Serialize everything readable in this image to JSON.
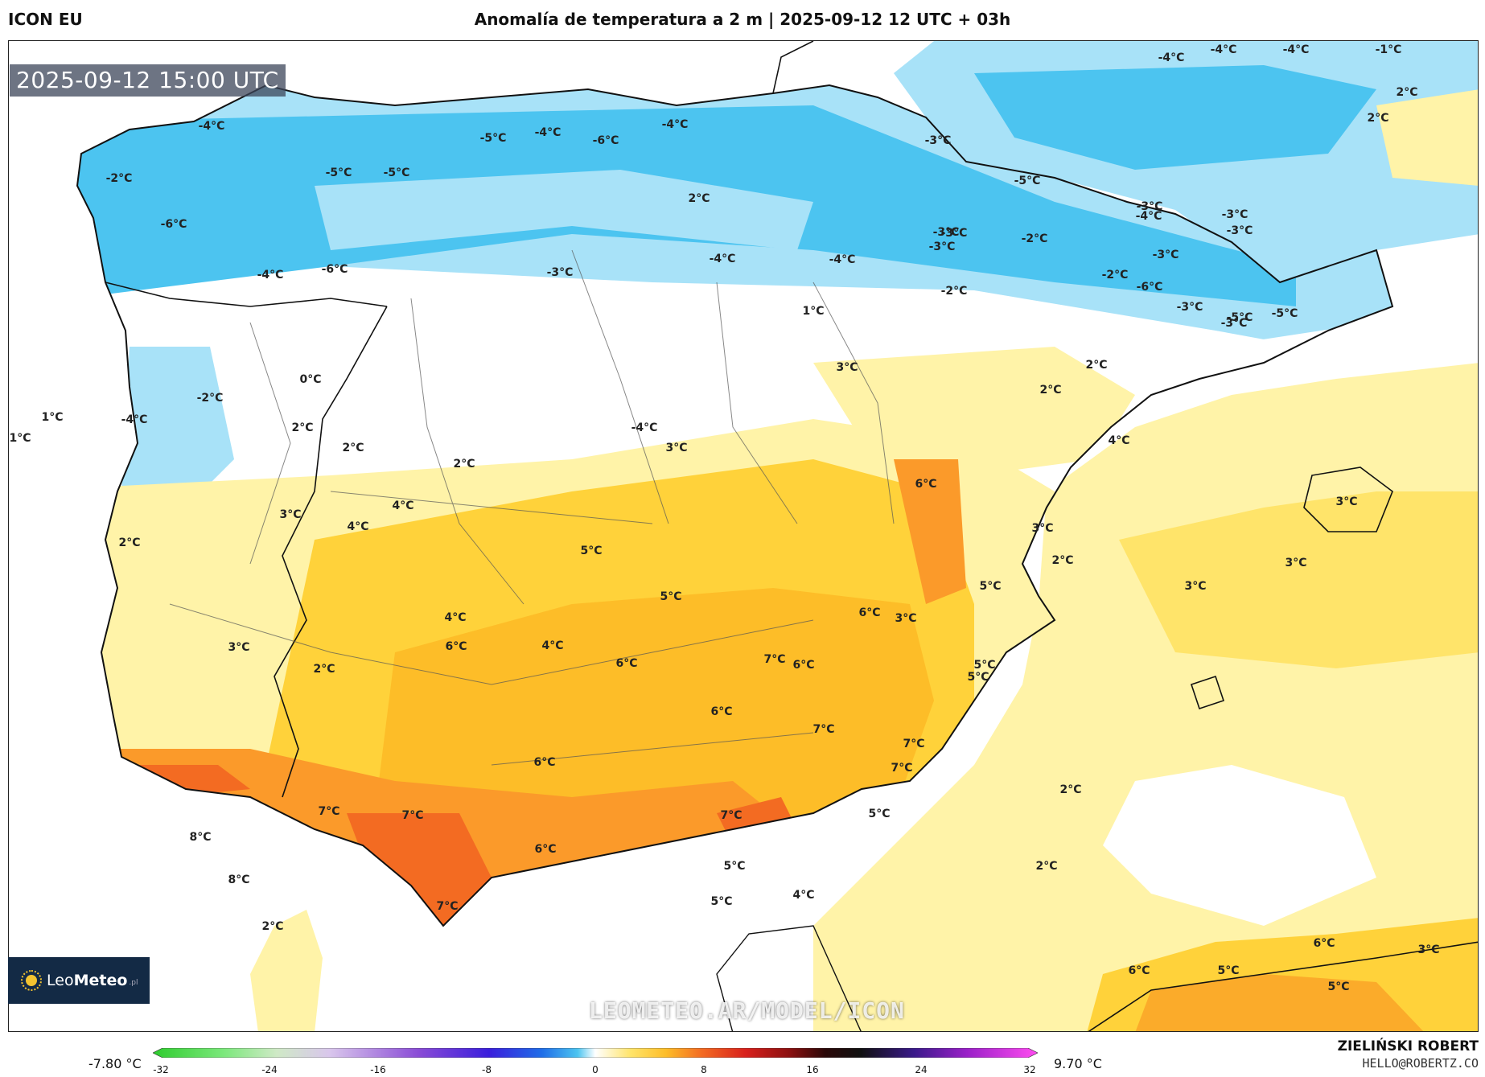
{
  "header": {
    "model": "ICON EU",
    "title": "Anomalía de temperatura a 2 m | 2025-09-12 12 UTC + 03h"
  },
  "map": {
    "valid_time": "2025-09-12 15:00 UTC",
    "watermark": "LEOMETEO.AR/MODEL/ICON",
    "labels": [
      "-4°C",
      "-4°C",
      "-4°C",
      "-1°C",
      "2°C",
      "2°C",
      "-4°C",
      "-5°C",
      "-4°C",
      "-6°C",
      "-4°C",
      "-3°C",
      "-5°C",
      "-3°C",
      "-3°C",
      "-2°C",
      "-5°C",
      "-5°C",
      "2°C",
      "-6°C",
      "-4°C",
      "-3°C",
      "-3°C",
      "-6°C",
      "-3°C",
      "-2°C",
      "-4°C",
      "-5°C",
      "-6°C",
      "-4°C",
      "-3°C",
      "-4°C",
      "-3°C",
      "-2°C",
      "-3°C",
      "-2°C",
      "-3°C",
      "-3°C",
      "-5°C",
      "1°C",
      "0°C",
      "3°C",
      "2°C",
      "2°C",
      "-2°C",
      "1°C",
      "-4°C",
      "-4°C",
      "4°C",
      "1°C",
      "2°C",
      "2°C",
      "3°C",
      "2°C",
      "6°C",
      "3°C",
      "4°C",
      "4°C",
      "3°C",
      "3°C",
      "5°C",
      "2°C",
      "3°C",
      "3°C",
      "2°C",
      "5°C",
      "3°C",
      "2°C",
      "6°C",
      "5°C",
      "3°C",
      "4°C",
      "4°C",
      "5°C",
      "6°C",
      "5°C",
      "6°C",
      "6°C",
      "7°C",
      "7°C",
      "7°C",
      "6°C",
      "6°C",
      "7°C",
      "2°C",
      "7°C",
      "7°C",
      "7°C",
      "5°C",
      "8°C",
      "6°C",
      "8°C",
      "5°C",
      "7°C",
      "2°C",
      "4°C",
      "5°C",
      "2°C",
      "6°C",
      "3°C",
      "5°C",
      "6°C",
      "5°C"
    ],
    "colors": {
      "cold": "#4cc4f0",
      "cool": "#a8e2f8",
      "neutral": "#ffffff",
      "mild": "#fff3a8",
      "warm": "#ffd23a",
      "hot": "#fb9a2a",
      "very_hot": "#f36b22"
    }
  },
  "legend": {
    "min_label": "-7.80 °C",
    "max_label": "9.70 °C",
    "ticks": [
      "-32",
      "-24",
      "-16",
      "-8",
      "0",
      "8",
      "16",
      "24",
      "32"
    ]
  },
  "logo": {
    "text_a": "Leo",
    "text_b": "Meteo",
    "suffix": ".pl"
  },
  "credits": {
    "author": "ZIELIŃSKI ROBERT",
    "contact": "HELLO@ROBERTZ.CO"
  }
}
